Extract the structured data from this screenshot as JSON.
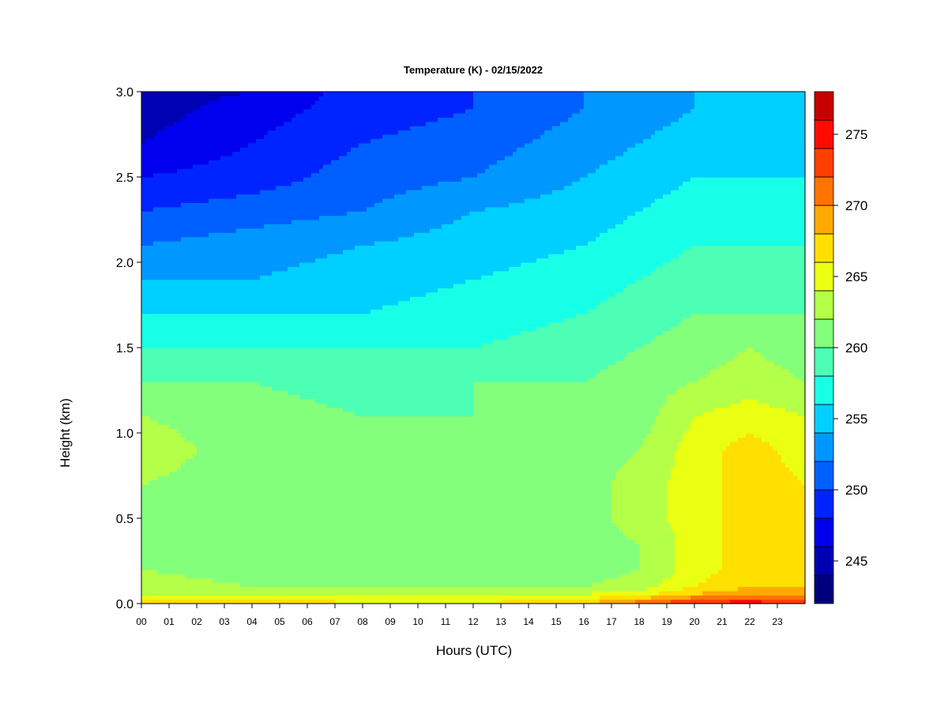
{
  "chart_data": {
    "type": "heatmap",
    "title": "Temperature (K) - 02/15/2022",
    "xlabel": "Hours (UTC)",
    "ylabel": "Height (km)",
    "xlim": [
      0,
      24
    ],
    "ylim": [
      0.0,
      3.0
    ],
    "x_ticks": [
      "00",
      "01",
      "02",
      "03",
      "04",
      "05",
      "06",
      "07",
      "08",
      "09",
      "10",
      "11",
      "12",
      "13",
      "14",
      "15",
      "16",
      "17",
      "18",
      "19",
      "20",
      "21",
      "22",
      "23"
    ],
    "y_ticks": [
      "0.0",
      "0.5",
      "1.0",
      "1.5",
      "2.0",
      "2.5",
      "3.0"
    ],
    "colorbar": {
      "range": [
        242,
        278
      ],
      "levels": [
        242,
        244,
        246,
        248,
        250,
        252,
        254,
        256,
        258,
        260,
        262,
        264,
        266,
        268,
        270,
        272,
        274,
        276,
        278
      ],
      "tick_values": [
        245,
        250,
        255,
        260,
        265,
        270,
        275
      ],
      "tick_labels": [
        "245",
        "250",
        "255",
        "260",
        "265",
        "270",
        "275"
      ],
      "colors": [
        "#00007F",
        "#0000B4",
        "#0000EE",
        "#0024FF",
        "#0060FF",
        "#0098FF",
        "#00D0FF",
        "#18FFE8",
        "#4CFFB4",
        "#84FF7C",
        "#B4FF48",
        "#EAFF12",
        "#FFE000",
        "#FFAA00",
        "#FF7400",
        "#FF3E00",
        "#FF0A00",
        "#C80000",
        "#7F0000"
      ]
    },
    "height_km": [
      0.0,
      0.03,
      0.06,
      0.1,
      0.2,
      0.35,
      0.5,
      0.7,
      0.9,
      1.1,
      1.3,
      1.5,
      1.7,
      1.9,
      2.1,
      2.3,
      2.5,
      2.7,
      2.9,
      3.0
    ],
    "hours": [
      0,
      1,
      2,
      3,
      4,
      5,
      6,
      7,
      8,
      9,
      10,
      11,
      12,
      13,
      14,
      15,
      16,
      17,
      18,
      19,
      20,
      21,
      22,
      23,
      24
    ],
    "temperature_K_profiles": [
      {
        "hour": 0,
        "values": [
          268,
          266,
          264,
          263,
          262,
          262,
          262,
          262,
          263,
          262,
          260,
          258,
          256,
          254,
          252,
          250,
          248,
          246,
          245,
          245
        ]
      },
      {
        "hour": 4,
        "values": [
          268,
          266,
          264,
          262,
          261,
          260,
          261,
          261,
          261,
          261,
          260,
          258,
          256,
          254,
          253,
          251,
          249,
          248,
          247,
          246
        ]
      },
      {
        "hour": 8,
        "values": [
          266,
          265,
          263,
          262,
          260,
          260,
          260,
          260,
          260,
          260,
          259,
          258,
          256,
          255,
          254,
          252,
          251,
          250,
          249,
          249
        ]
      },
      {
        "hour": 12,
        "values": [
          266,
          265,
          263,
          262,
          261,
          260,
          260,
          260,
          260,
          260,
          260,
          258,
          257,
          256,
          255,
          254,
          252,
          251,
          250,
          250
        ]
      },
      {
        "hour": 16,
        "values": [
          268,
          266,
          264,
          262,
          261,
          261,
          261,
          261,
          261,
          261,
          260,
          259,
          258,
          257,
          256,
          255,
          254,
          253,
          252,
          252
        ]
      },
      {
        "hour": 18,
        "values": [
          272,
          268,
          265,
          263,
          262,
          262,
          263,
          263,
          262,
          261,
          261,
          260,
          259,
          258,
          257,
          256,
          255,
          254,
          253,
          253
        ]
      },
      {
        "hour": 20,
        "values": [
          275,
          271,
          268,
          266,
          265,
          265,
          265,
          265,
          265,
          264,
          262,
          261,
          260,
          259,
          258,
          257,
          256,
          255,
          254,
          254
        ]
      },
      {
        "hour": 22,
        "values": [
          276,
          272,
          269,
          268,
          267,
          267,
          267,
          267,
          267,
          265,
          263,
          262,
          260,
          259,
          258,
          257,
          256,
          255,
          255,
          255
        ]
      },
      {
        "hour": 24,
        "values": [
          274,
          271,
          269,
          268,
          267,
          267,
          266,
          266,
          265,
          264,
          262,
          261,
          260,
          259,
          258,
          257,
          256,
          255,
          255,
          255
        ]
      }
    ]
  }
}
